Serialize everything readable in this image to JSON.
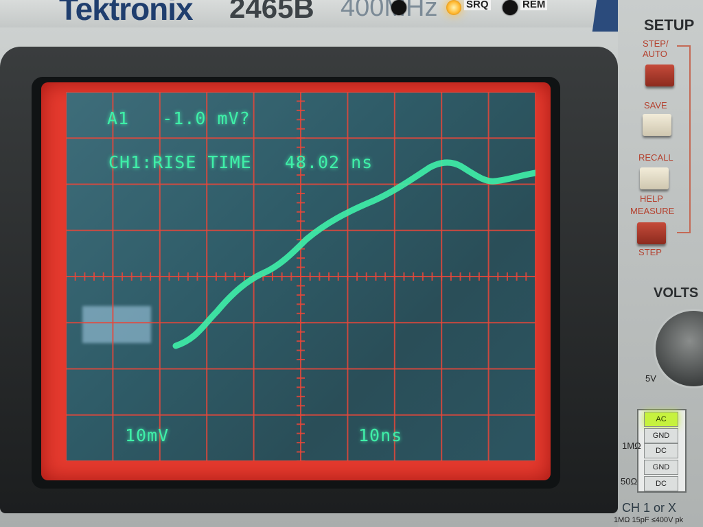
{
  "brand": "Tektronix",
  "model": "2465B",
  "bandwidth": "400MHz",
  "indicators": {
    "srq_label": "SRQ",
    "rem_label": "REM"
  },
  "screen": {
    "line1": "A1   -1.0 mV?",
    "line2": "CH1:RISE TIME   48.02 ns",
    "volts_per_div": "10mV",
    "time_per_div": "10ns",
    "trace_color": "#3ff0a8",
    "graticule_color": "#e8473a"
  },
  "panel": {
    "setup_title": "SETUP",
    "step_auto": "STEP/ AUTO",
    "save": "SAVE",
    "recall": "RECALL",
    "help": "HELP",
    "measure": "MEASURE",
    "step": "STEP",
    "volts_title": "VOLTS",
    "volts_tick": "5V",
    "coupling": [
      "AC",
      "GND",
      "DC",
      "GND",
      "DC"
    ],
    "coupling_selected": "AC",
    "impedance_1m": "1MΩ",
    "impedance_50": "50Ω",
    "channel_label": "CH 1 or X",
    "input_spec": "1MΩ 15pF ≤400V pk"
  }
}
